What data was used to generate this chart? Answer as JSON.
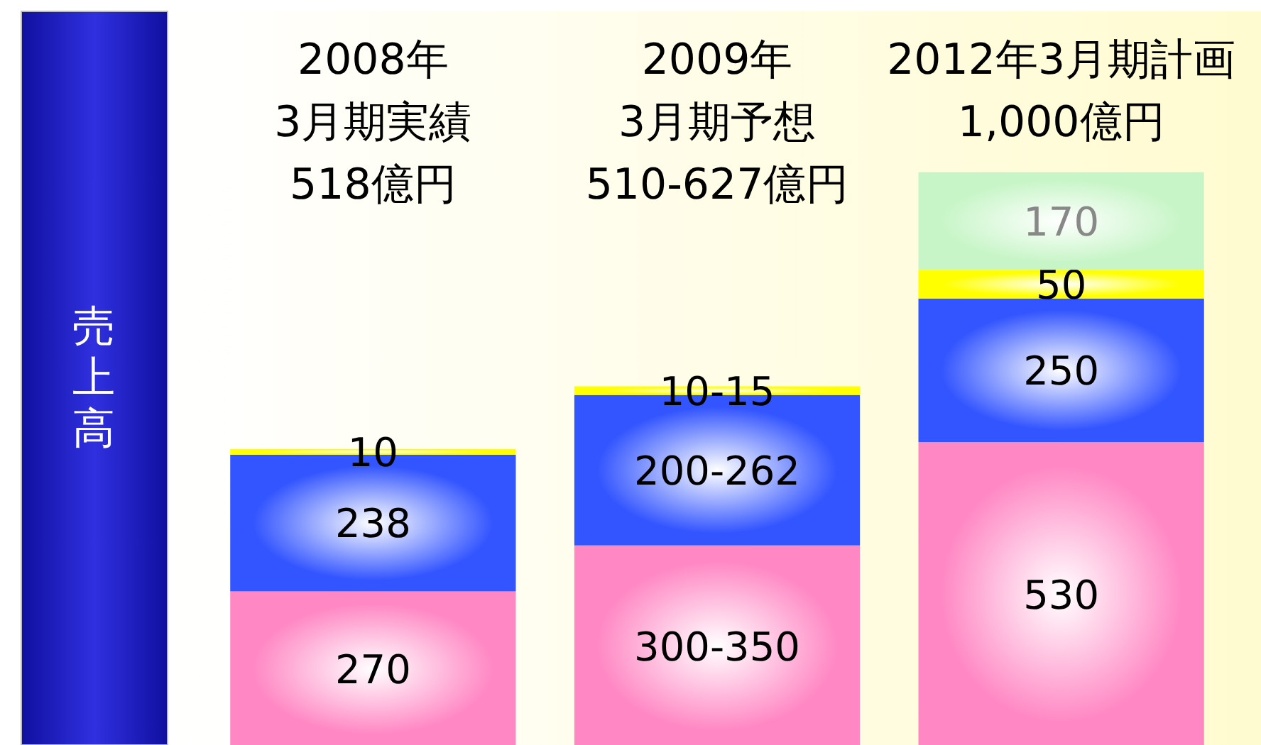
{
  "chart_data": {
    "type": "bar",
    "stacked": true,
    "ylabel": "売上高",
    "categories": [
      "2008年\n3月期実績\n518億円",
      "2009年\n3月期予想\n510-627億円",
      "2012年3月期計画\n1,000億円"
    ],
    "ylim": [
      0,
      1280
    ],
    "series": [
      {
        "color": "#ff88c4",
        "values": [
          270,
          350,
          530
        ],
        "value_labels": [
          "270",
          "300-350",
          "530"
        ]
      },
      {
        "color": "#3355ff",
        "values": [
          238,
          262,
          250
        ],
        "value_labels": [
          "238",
          "200-262",
          "250"
        ]
      },
      {
        "color": "#ffff00",
        "values": [
          10,
          15,
          50
        ],
        "value_labels": [
          "10",
          "10-15",
          "50"
        ]
      },
      {
        "color": "#c8f5c8",
        "values": [
          null,
          null,
          170
        ],
        "value_labels": [
          null,
          null,
          "170"
        ]
      }
    ]
  }
}
